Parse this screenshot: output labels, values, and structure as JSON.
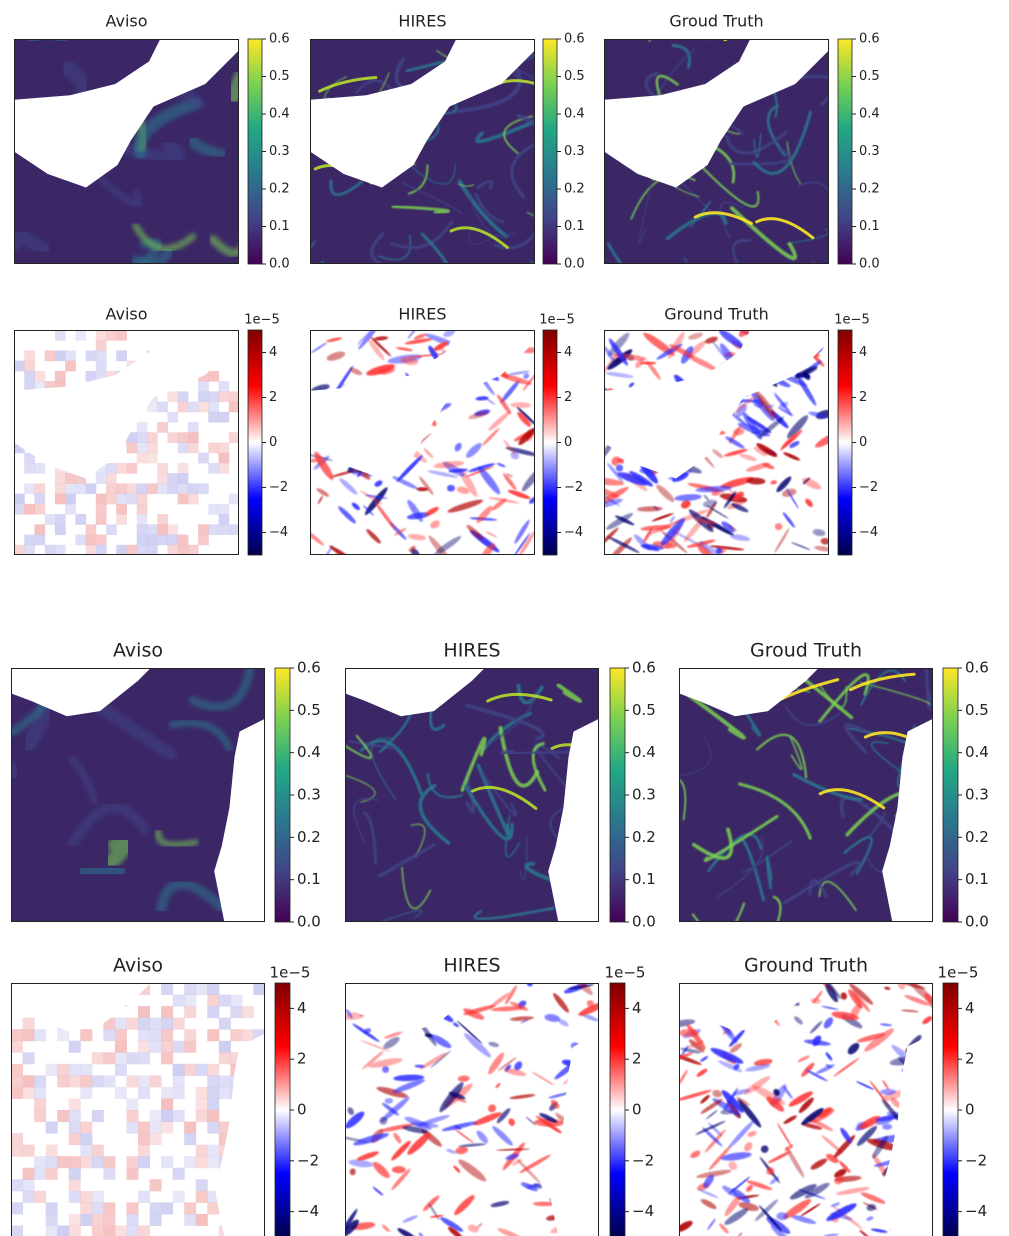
{
  "rows": [
    {
      "colormap": "viridis",
      "panels": [
        {
          "title": "Aviso",
          "colorbar": {
            "lim": [
              0,
              0.6
            ],
            "ticks": [
              {
                "value": 0,
                "label": "0.0"
              },
              0.1,
              0.2,
              0.3,
              0.4,
              0.5,
              0.6
            ]
          }
        },
        {
          "title": "HIRES",
          "colorbar": {
            "lim": [
              0,
              0.6
            ],
            "ticks": [
              {
                "value": 0,
                "label": "0.0"
              },
              0.1,
              0.2,
              0.3,
              0.4,
              0.5,
              0.6
            ]
          }
        },
        {
          "title": "Groud Truth",
          "colorbar": {
            "lim": [
              0,
              0.6
            ],
            "ticks": [
              {
                "value": 0,
                "label": "0.0"
              },
              0.1,
              0.2,
              0.3,
              0.4,
              0.5,
              0.6
            ]
          }
        }
      ]
    },
    {
      "colormap": "seismic",
      "panels": [
        {
          "title": "Aviso",
          "colorbar": {
            "offset": "1e−5",
            "lim": [
              -5,
              5
            ],
            "ticks": [
              {
                "value": -4,
                "label": "−4"
              },
              {
                "value": -2,
                "label": "−2"
              },
              0,
              2,
              4
            ]
          }
        },
        {
          "title": "HIRES",
          "colorbar": {
            "offset": "1e−5",
            "lim": [
              -5,
              5
            ],
            "ticks": [
              {
                "value": -4,
                "label": "−4"
              },
              {
                "value": -2,
                "label": "−2"
              },
              0,
              2,
              4
            ]
          }
        },
        {
          "title": "Ground Truth",
          "colorbar": {
            "offset": "1e−5",
            "lim": [
              -5,
              5
            ],
            "ticks": [
              {
                "value": -4,
                "label": "−4"
              },
              {
                "value": -2,
                "label": "−2"
              },
              0,
              2,
              4
            ]
          }
        }
      ]
    },
    {
      "colormap": "viridis",
      "panels": [
        {
          "title": "Aviso",
          "colorbar": {
            "lim": [
              0,
              0.6
            ],
            "ticks": [
              {
                "value": 0,
                "label": "0.0"
              },
              0.1,
              0.2,
              0.3,
              0.4,
              0.5,
              0.6
            ]
          }
        },
        {
          "title": "HIRES",
          "colorbar": {
            "lim": [
              0,
              0.6
            ],
            "ticks": [
              {
                "value": 0,
                "label": "0.0"
              },
              0.1,
              0.2,
              0.3,
              0.4,
              0.5,
              0.6
            ]
          }
        },
        {
          "title": "Groud Truth",
          "colorbar": {
            "lim": [
              0,
              0.6
            ],
            "ticks": [
              {
                "value": 0,
                "label": "0.0"
              },
              0.1,
              0.2,
              0.3,
              0.4,
              0.5,
              0.6
            ]
          }
        }
      ]
    },
    {
      "colormap": "seismic",
      "panels": [
        {
          "title": "Aviso",
          "colorbar": {
            "offset": "1e−5",
            "lim": [
              -5,
              5
            ],
            "ticks": [
              {
                "value": -4,
                "label": "−4"
              },
              {
                "value": -2,
                "label": "−2"
              },
              0,
              2,
              4
            ]
          }
        },
        {
          "title": "HIRES",
          "colorbar": {
            "offset": "1e−5",
            "lim": [
              -5,
              5
            ],
            "ticks": [
              {
                "value": -4,
                "label": "−4"
              },
              {
                "value": -2,
                "label": "−2"
              },
              0,
              2,
              4
            ]
          }
        },
        {
          "title": "Ground Truth",
          "colorbar": {
            "offset": "1e−5",
            "lim": [
              -5,
              5
            ],
            "ticks": [
              {
                "value": -4,
                "label": "−4"
              },
              {
                "value": -2,
                "label": "−2"
              },
              0,
              2,
              4
            ]
          }
        }
      ]
    }
  ]
}
